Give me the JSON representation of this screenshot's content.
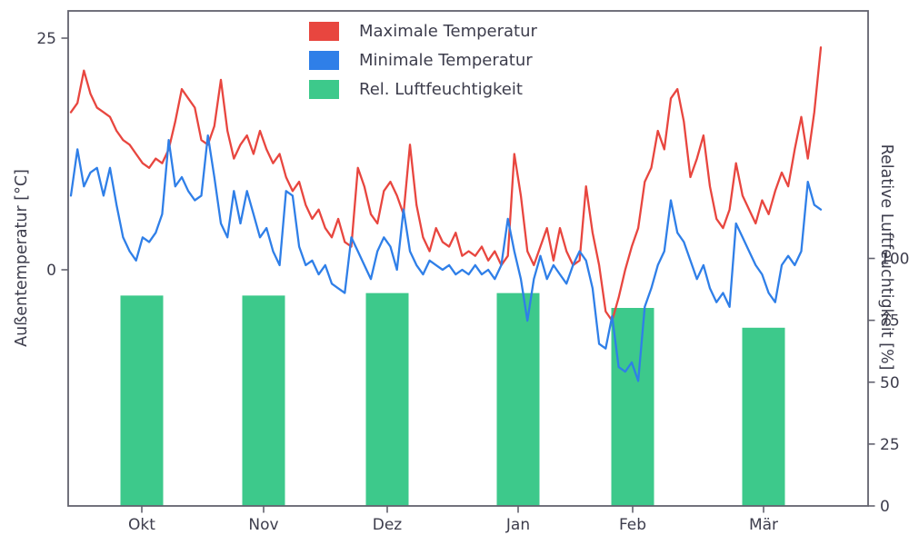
{
  "chart_data": {
    "type": "line",
    "title": "",
    "left_axis": {
      "label": "Außentemperatur [°C]",
      "ticks": [
        25,
        0
      ],
      "range": [
        -25.5,
        27.9
      ]
    },
    "right_axis": {
      "label": "Relative Luftfeuchtigkeit [%]",
      "ticks": [
        100,
        75,
        50,
        25,
        0
      ],
      "range": [
        0,
        200
      ]
    },
    "x_axis": {
      "tick_labels": [
        "Okt",
        "Nov",
        "Dez",
        "Jan",
        "Feb",
        "Mär"
      ]
    },
    "legend": {
      "items": [
        {
          "label": "Maximale Temperatur",
          "color": "#e8463f"
        },
        {
          "label": "Minimale Temperatur",
          "color": "#2f7fe8"
        },
        {
          "label": "Rel. Luftfeuchtigkeit",
          "color": "#3dc98b"
        }
      ]
    },
    "series": [
      {
        "name": "Maximale Temperatur",
        "type": "line",
        "axis": "left",
        "color": "#e8463f",
        "values": [
          17,
          18,
          21.5,
          19,
          17.5,
          17,
          16.5,
          15,
          14,
          13.5,
          12.5,
          11.5,
          11,
          12,
          11.5,
          13,
          16,
          19.5,
          18.5,
          17.5,
          14,
          13.5,
          15.5,
          20.5,
          15,
          12,
          13.5,
          14.5,
          12.5,
          15,
          13,
          11.5,
          12.5,
          10,
          8.5,
          9.5,
          7,
          5.5,
          6.5,
          4.5,
          3.5,
          5.5,
          3,
          2.5,
          11,
          9,
          6,
          5,
          8.5,
          9.5,
          8,
          6,
          13.5,
          7,
          3.5,
          2,
          4.5,
          3,
          2.5,
          4,
          1.5,
          2,
          1.5,
          2.5,
          1,
          2,
          0.5,
          1.5,
          12.5,
          8,
          2,
          0.5,
          2.5,
          4.5,
          1,
          4.5,
          2,
          0.5,
          1,
          9,
          4,
          0.5,
          -4.5,
          -5.5,
          -3,
          0,
          2.5,
          4.5,
          9.5,
          11,
          15,
          13,
          18.5,
          19.5,
          16,
          10,
          12,
          14.5,
          9,
          5.5,
          4.5,
          6.5,
          11.5,
          8,
          6.5,
          5,
          7.5,
          6,
          8.5,
          10.5,
          9,
          13,
          16.5,
          12,
          17,
          24
        ]
      },
      {
        "name": "Minimale Temperatur",
        "type": "line",
        "axis": "left",
        "color": "#2f7fe8",
        "values": [
          8,
          13,
          9,
          10.5,
          11,
          8,
          11,
          7,
          3.5,
          2,
          1,
          3.5,
          3,
          4,
          6,
          14,
          9,
          10,
          8.5,
          7.5,
          8,
          14.5,
          10,
          5,
          3.5,
          8.5,
          5,
          8.5,
          6,
          3.5,
          4.5,
          2,
          0.5,
          8.5,
          8,
          2.5,
          0.5,
          1,
          -0.5,
          0.5,
          -1.5,
          -2,
          -2.5,
          3.5,
          2,
          0.5,
          -1,
          2,
          3.5,
          2.5,
          0,
          6.5,
          2,
          0.5,
          -0.5,
          1,
          0.5,
          0,
          0.5,
          -0.5,
          0,
          -0.5,
          0.5,
          -0.5,
          0,
          -1,
          0.5,
          5.5,
          2,
          -1,
          -5.5,
          -1,
          1.5,
          -1,
          0.5,
          -0.5,
          -1.5,
          0.5,
          2,
          1,
          -2,
          -8,
          -8.5,
          -5,
          -10.5,
          -11,
          -10,
          -12,
          -4,
          -2,
          0.5,
          2,
          7.5,
          4,
          3,
          1,
          -1,
          0.5,
          -2,
          -3.5,
          -2.5,
          -4,
          5,
          3.5,
          2,
          0.5,
          -0.5,
          -2.5,
          -3.5,
          0.5,
          1.5,
          0.5,
          2,
          9.5,
          7,
          6.5
        ]
      },
      {
        "name": "Rel. Luftfeuchtigkeit",
        "type": "bar",
        "axis": "right",
        "color": "#3dc98b",
        "categories": [
          "Okt",
          "Nov",
          "Dez",
          "Jan",
          "Feb",
          "Mär"
        ],
        "values": [
          85,
          85,
          86,
          86,
          80,
          72
        ]
      }
    ],
    "styles": {
      "text_color": "#3d3d4c",
      "axis_color": "#62626e",
      "background": "#ffffff"
    }
  }
}
